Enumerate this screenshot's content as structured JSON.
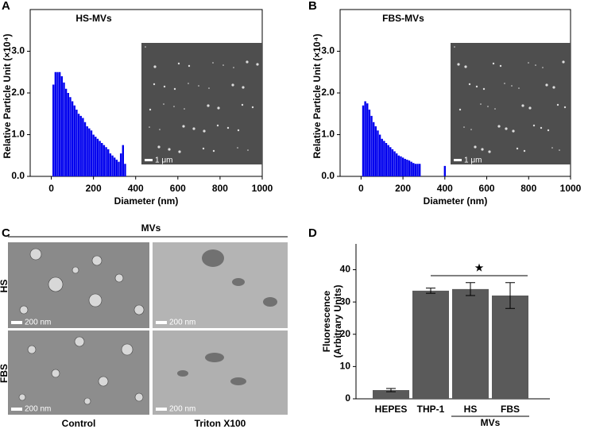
{
  "chart_data": [
    {
      "type": "bar",
      "panel_label": "A",
      "title": "HS-MVs",
      "inset_scale_bar": "1 μm",
      "x_label": "Diameter (nm)",
      "y_label": "Relative Particle Unit (×10⁴)",
      "x": [
        10,
        20,
        30,
        40,
        50,
        60,
        70,
        80,
        90,
        100,
        110,
        120,
        130,
        140,
        150,
        160,
        170,
        180,
        190,
        200,
        210,
        220,
        230,
        240,
        250,
        260,
        270,
        280,
        290,
        300,
        310,
        320,
        330,
        340,
        350
      ],
      "values": [
        2.2,
        2.5,
        2.5,
        2.5,
        2.4,
        2.25,
        2.1,
        2.0,
        1.9,
        1.8,
        1.7,
        1.6,
        1.5,
        1.45,
        1.4,
        1.3,
        1.2,
        1.15,
        1.1,
        1.0,
        0.95,
        0.9,
        0.85,
        0.8,
        0.75,
        0.7,
        0.65,
        0.55,
        0.5,
        0.45,
        0.4,
        0.35,
        0.55,
        0.75,
        0.3
      ],
      "color": "#0000ee",
      "xlim": [
        -100,
        1000
      ],
      "ylim": [
        0,
        4.0
      ],
      "xticks": [
        0,
        200,
        400,
        600,
        800,
        1000
      ],
      "yticks": [
        {
          "value": 0,
          "label": "0.0"
        },
        {
          "value": 1,
          "label": "1.0"
        },
        {
          "value": 2,
          "label": "2.0"
        },
        {
          "value": 3,
          "label": "3.0"
        }
      ]
    },
    {
      "type": "bar",
      "panel_label": "B",
      "title": "FBS-MVs",
      "inset_scale_bar": "1 μm",
      "x_label": "Diameter (nm)",
      "y_label": "Relative Particle Unit (×10⁴)",
      "x": [
        10,
        20,
        30,
        40,
        50,
        60,
        70,
        80,
        90,
        100,
        110,
        120,
        130,
        140,
        150,
        160,
        170,
        180,
        190,
        200,
        210,
        220,
        230,
        240,
        250,
        260,
        270,
        280,
        400
      ],
      "values": [
        1.7,
        1.8,
        1.75,
        1.6,
        1.45,
        1.3,
        1.2,
        1.1,
        1.0,
        0.9,
        0.85,
        0.8,
        0.75,
        0.7,
        0.65,
        0.6,
        0.55,
        0.5,
        0.48,
        0.45,
        0.42,
        0.4,
        0.38,
        0.35,
        0.32,
        0.3,
        0.3,
        0.3,
        0.25
      ],
      "color": "#0000ee",
      "xlim": [
        -100,
        1000
      ],
      "ylim": [
        0,
        4.0
      ],
      "xticks": [
        0,
        200,
        400,
        600,
        800,
        1000
      ],
      "yticks": [
        {
          "value": 0,
          "label": "0.0"
        },
        {
          "value": 1,
          "label": "1.0"
        },
        {
          "value": 2,
          "label": "2.0"
        },
        {
          "value": 3,
          "label": "3.0"
        }
      ]
    },
    {
      "type": "errorbar",
      "panel_label": "D",
      "y_label": [
        "Fluorescence",
        "(Arbitrary Units)"
      ],
      "categories": [
        "HEPES",
        "THP-1",
        "HS",
        "FBS"
      ],
      "group_label": "MVs",
      "annotation": "★",
      "values": [
        2.7,
        33.5,
        34,
        32
      ],
      "errors": [
        0.5,
        0.8,
        2,
        4
      ],
      "color": "#5a5a5a",
      "ylim": [
        0,
        48
      ],
      "yticks": [
        0,
        10,
        20,
        30,
        40
      ]
    }
  ],
  "figure_c": {
    "panel_label": "C",
    "title": "MVs",
    "rows": [
      "HS",
      "FBS"
    ],
    "columns": [
      "Control",
      "Triton X100"
    ],
    "scale_bar": "200 nm"
  }
}
